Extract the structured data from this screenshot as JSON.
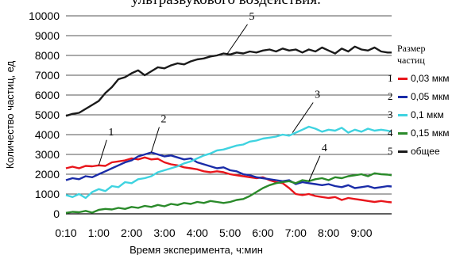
{
  "caption": "ультразвукового воздействия.",
  "chart_data": {
    "type": "line",
    "xlabel": "Время эксперимента, ч:мин",
    "ylabel": "Количество частиц, ед",
    "xlim": [
      0,
      9.92
    ],
    "ylim": [
      0,
      10000
    ],
    "x_ticks": [
      "0:10",
      "1:00",
      "2:00",
      "3:00",
      "4:00",
      "5:00",
      "6:00",
      "7:00",
      "8:00",
      "9:00"
    ],
    "y_ticks": [
      "0",
      "1000",
      "2000",
      "3000",
      "4000",
      "5000",
      "6000",
      "7000",
      "8000",
      "9000",
      "10000"
    ],
    "grid": "horizontal",
    "legend_title": [
      "Размер",
      "частиц"
    ],
    "series": [
      {
        "name": "0,03 мкм",
        "num": "1",
        "color": "#e8151b",
        "x": [
          0,
          0.2,
          0.4,
          0.6,
          0.8,
          1,
          1.2,
          1.4,
          1.6,
          1.8,
          2,
          2.2,
          2.4,
          2.6,
          2.8,
          3,
          3.2,
          3.4,
          3.6,
          3.8,
          4,
          4.2,
          4.4,
          4.6,
          4.8,
          5,
          5.2,
          5.4,
          5.6,
          5.8,
          6,
          6.2,
          6.4,
          6.6,
          6.8,
          7,
          7.2,
          7.4,
          7.6,
          7.8,
          8,
          8.2,
          8.4,
          8.6,
          8.8,
          9,
          9.2,
          9.4,
          9.6,
          9.8,
          9.92
        ],
        "values": [
          2300,
          2380,
          2300,
          2420,
          2400,
          2450,
          2420,
          2600,
          2650,
          2700,
          2800,
          2750,
          2850,
          2750,
          2780,
          2600,
          2500,
          2450,
          2350,
          2300,
          2250,
          2150,
          2100,
          2150,
          2100,
          2000,
          1950,
          1900,
          1850,
          1800,
          1850,
          1700,
          1600,
          1550,
          1300,
          1000,
          950,
          1000,
          900,
          850,
          800,
          850,
          700,
          800,
          750,
          700,
          650,
          600,
          650,
          600,
          580
        ]
      },
      {
        "name": "0,05 мкм",
        "num": "2",
        "color": "#1a2ca8",
        "x": [
          0,
          0.2,
          0.4,
          0.6,
          0.8,
          1,
          1.2,
          1.4,
          1.6,
          1.8,
          2,
          2.2,
          2.4,
          2.6,
          2.8,
          3,
          3.2,
          3.4,
          3.6,
          3.8,
          4,
          4.2,
          4.4,
          4.6,
          4.8,
          5,
          5.2,
          5.4,
          5.6,
          5.8,
          6,
          6.2,
          6.4,
          6.6,
          6.8,
          7,
          7.2,
          7.4,
          7.6,
          7.8,
          8,
          8.2,
          8.4,
          8.6,
          8.8,
          9,
          9.2,
          9.4,
          9.6,
          9.8,
          9.92
        ],
        "values": [
          1700,
          1800,
          1750,
          1900,
          1850,
          2000,
          2150,
          2300,
          2450,
          2600,
          2700,
          2900,
          3000,
          3100,
          3000,
          2900,
          2950,
          2850,
          2750,
          2800,
          2600,
          2500,
          2400,
          2300,
          2350,
          2200,
          2150,
          2000,
          1950,
          1850,
          1800,
          1750,
          1700,
          1650,
          1700,
          1500,
          1600,
          1550,
          1500,
          1450,
          1500,
          1400,
          1350,
          1450,
          1300,
          1350,
          1400,
          1300,
          1350,
          1400,
          1380
        ]
      },
      {
        "name": "0,1 мкм",
        "num": "3",
        "color": "#3fd3e0",
        "x": [
          0,
          0.2,
          0.4,
          0.6,
          0.8,
          1,
          1.2,
          1.4,
          1.6,
          1.8,
          2,
          2.2,
          2.4,
          2.6,
          2.8,
          3,
          3.2,
          3.4,
          3.6,
          3.8,
          4,
          4.2,
          4.4,
          4.6,
          4.8,
          5,
          5.2,
          5.4,
          5.6,
          5.8,
          6,
          6.2,
          6.4,
          6.6,
          6.8,
          7,
          7.2,
          7.4,
          7.6,
          7.8,
          8,
          8.2,
          8.4,
          8.6,
          8.8,
          9,
          9.2,
          9.4,
          9.6,
          9.8,
          9.92
        ],
        "values": [
          950,
          850,
          1000,
          800,
          1100,
          1250,
          1150,
          1400,
          1350,
          1600,
          1550,
          1750,
          1800,
          1900,
          2100,
          2200,
          2300,
          2400,
          2550,
          2650,
          2800,
          2950,
          3050,
          3200,
          3250,
          3350,
          3450,
          3500,
          3650,
          3700,
          3800,
          3850,
          3900,
          4000,
          3950,
          4100,
          4250,
          4400,
          4300,
          4150,
          4250,
          4200,
          4350,
          4100,
          4250,
          4150,
          4300,
          4200,
          4250,
          4200,
          4150
        ]
      },
      {
        "name": "0,15 мкм",
        "num": "4",
        "color": "#2a8a2a",
        "x": [
          0,
          0.2,
          0.4,
          0.6,
          0.8,
          1,
          1.2,
          1.4,
          1.6,
          1.8,
          2,
          2.2,
          2.4,
          2.6,
          2.8,
          3,
          3.2,
          3.4,
          3.6,
          3.8,
          4,
          4.2,
          4.4,
          4.6,
          4.8,
          5,
          5.2,
          5.4,
          5.6,
          5.8,
          6,
          6.2,
          6.4,
          6.6,
          6.8,
          7,
          7.2,
          7.4,
          7.6,
          7.8,
          8,
          8.2,
          8.4,
          8.6,
          8.8,
          9,
          9.2,
          9.4,
          9.6,
          9.8,
          9.92
        ],
        "values": [
          50,
          100,
          80,
          150,
          60,
          200,
          250,
          220,
          300,
          250,
          350,
          300,
          400,
          350,
          450,
          380,
          500,
          450,
          550,
          500,
          600,
          550,
          650,
          600,
          550,
          600,
          700,
          750,
          900,
          1100,
          1300,
          1450,
          1550,
          1600,
          1650,
          1550,
          1700,
          1650,
          1750,
          1800,
          1700,
          1850,
          1800,
          1900,
          1950,
          2000,
          1900,
          2050,
          2000,
          1980,
          1950
        ]
      },
      {
        "name": "общее",
        "num": "5",
        "color": "#1a1a1a",
        "x": [
          0,
          0.2,
          0.4,
          0.6,
          0.8,
          1,
          1.2,
          1.4,
          1.6,
          1.8,
          2,
          2.2,
          2.4,
          2.6,
          2.8,
          3,
          3.2,
          3.4,
          3.6,
          3.8,
          4,
          4.2,
          4.4,
          4.6,
          4.8,
          5,
          5.2,
          5.4,
          5.6,
          5.8,
          6,
          6.2,
          6.4,
          6.6,
          6.8,
          7,
          7.2,
          7.4,
          7.6,
          7.8,
          8,
          8.2,
          8.4,
          8.6,
          8.8,
          9,
          9.2,
          9.4,
          9.6,
          9.8,
          9.92
        ],
        "values": [
          4950,
          5050,
          5100,
          5300,
          5500,
          5700,
          6100,
          6400,
          6800,
          6900,
          7100,
          7250,
          7000,
          7200,
          7400,
          7350,
          7500,
          7600,
          7550,
          7700,
          7800,
          7850,
          7950,
          8000,
          8100,
          8050,
          8150,
          8100,
          8200,
          8150,
          8250,
          8300,
          8200,
          8350,
          8250,
          8300,
          8150,
          8300,
          8200,
          8400,
          8250,
          8100,
          8350,
          8200,
          8450,
          8300,
          8250,
          8400,
          8200,
          8150,
          8150
        ]
      }
    ],
    "annotations": [
      {
        "text": "1",
        "series": 0,
        "x": 1.0
      },
      {
        "text": "2",
        "series": 1,
        "x": 2.6
      },
      {
        "text": "3",
        "series": 2,
        "x": 6.9
      },
      {
        "text": "4",
        "series": 3,
        "x": 7.4
      },
      {
        "text": "5",
        "series": 4,
        "x": 4.9
      }
    ]
  }
}
